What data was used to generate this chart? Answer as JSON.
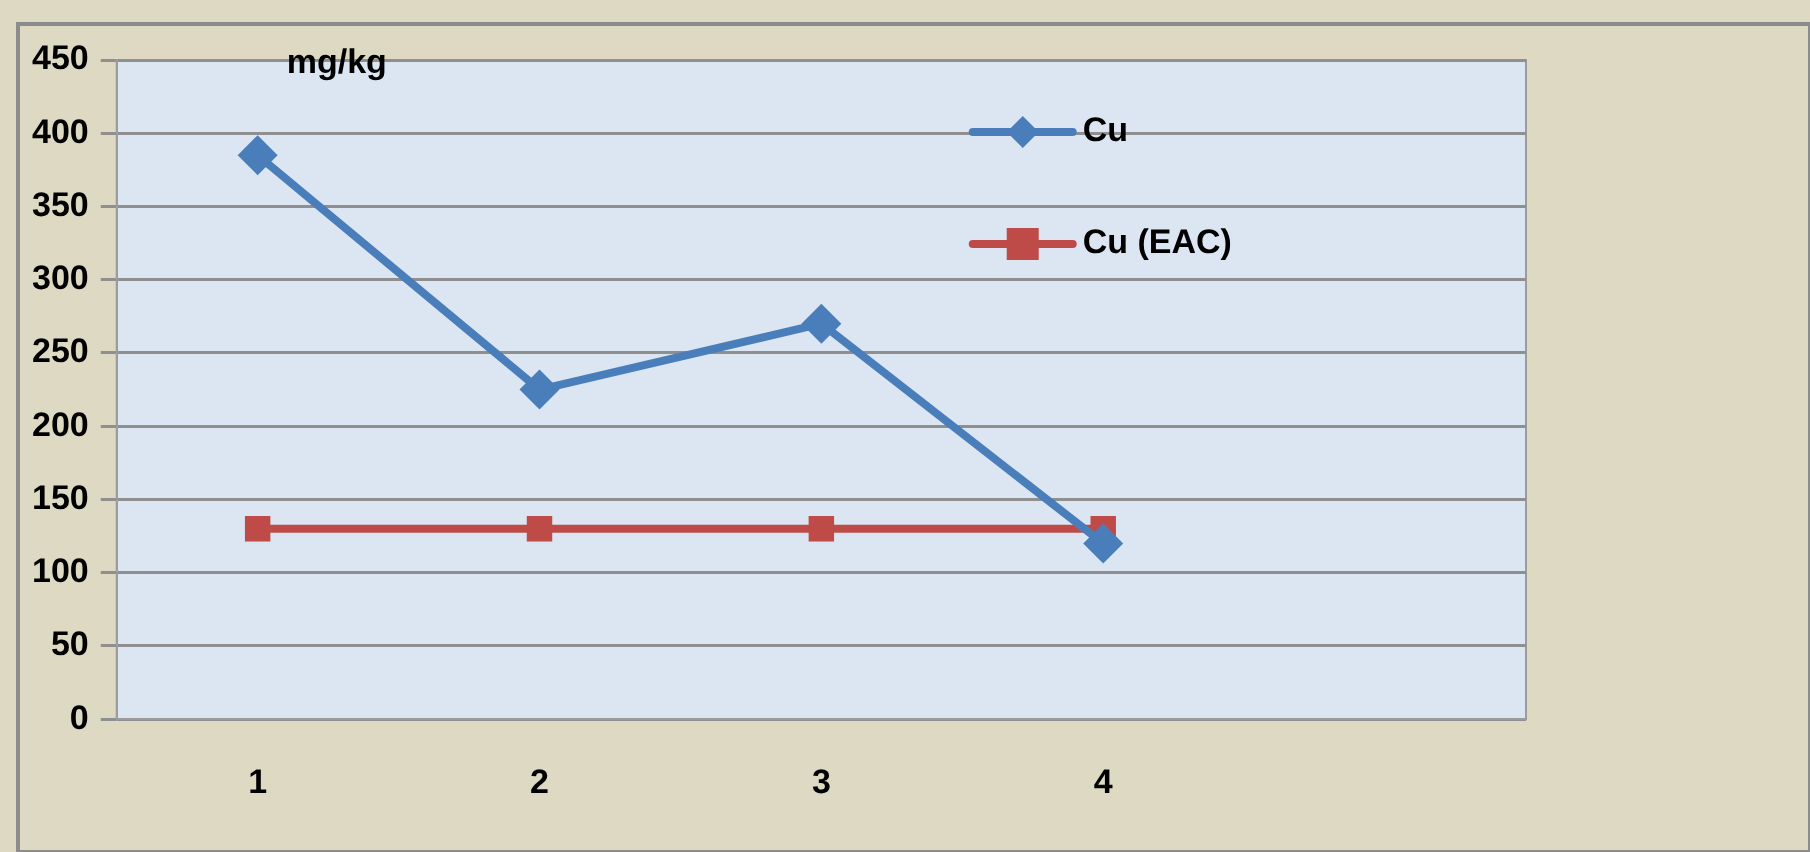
{
  "chart_data": {
    "type": "line",
    "ylabel": "mg/kg",
    "categories": [
      "1",
      "2",
      "3",
      "4",
      null
    ],
    "series": [
      {
        "name": "Cu",
        "color": "#4a7ebb",
        "marker": "diamond",
        "values": [
          385,
          225,
          270,
          120,
          null
        ]
      },
      {
        "name": "Cu (EAC)",
        "color": "#be4b48",
        "marker": "square",
        "values": [
          130,
          130,
          130,
          130,
          null
        ]
      }
    ],
    "ylim": [
      0,
      450
    ],
    "yticks": [
      0,
      50,
      100,
      150,
      200,
      250,
      300,
      350,
      400,
      450
    ],
    "grid": "y",
    "legend": "top right"
  }
}
